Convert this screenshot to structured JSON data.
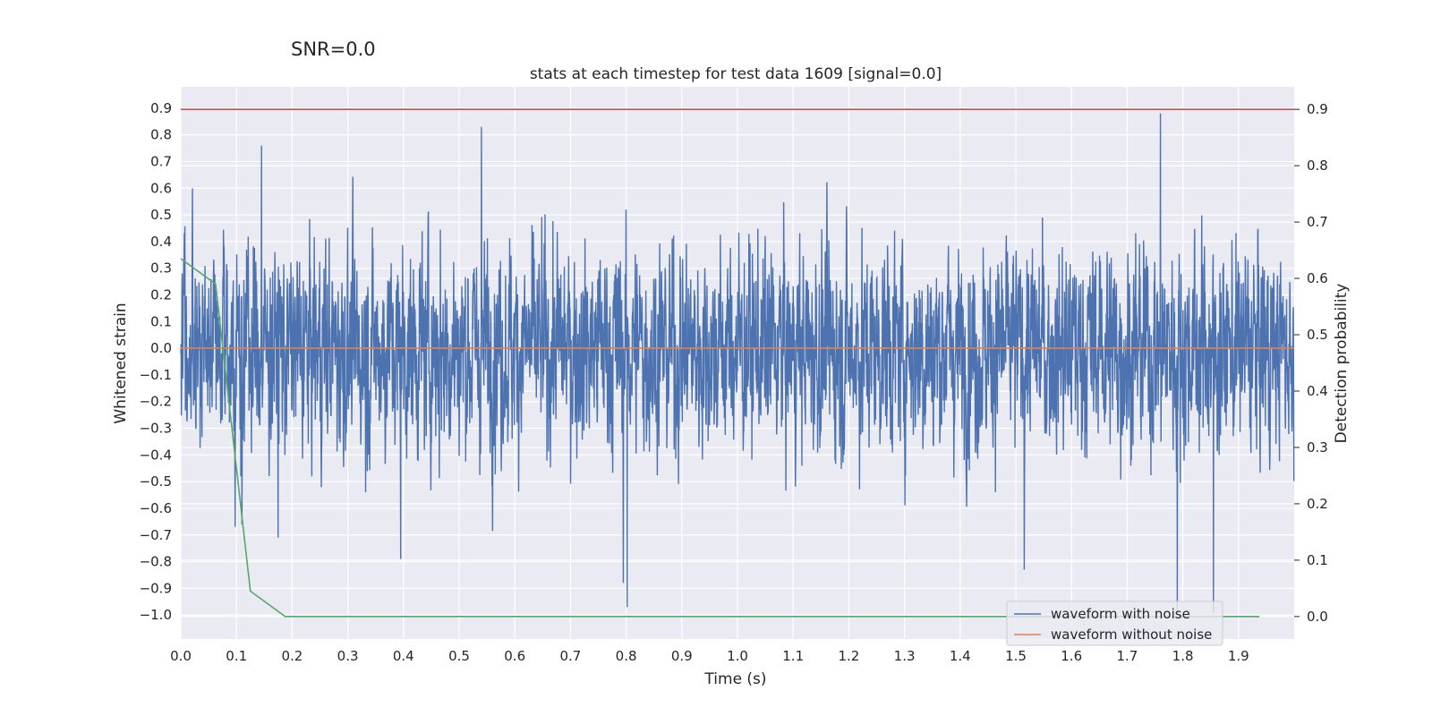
{
  "suptitle": "SNR=0.0",
  "chart_data": {
    "type": "line",
    "title": "stats at each timestep for test data 1609 [signal=0.0]",
    "xlabel": "Time (s)",
    "ylabel": "Whitened strain",
    "ylabel_right": "Detection probability",
    "xlim": [
      0.0,
      2.0
    ],
    "ylim": [
      -1.09,
      0.98
    ],
    "ylim_right": [
      -0.04,
      0.94
    ],
    "xticks": [
      "0.0",
      "0.1",
      "0.2",
      "0.3",
      "0.4",
      "0.5",
      "0.6",
      "0.7",
      "0.8",
      "0.9",
      "1.0",
      "1.1",
      "1.2",
      "1.3",
      "1.4",
      "1.5",
      "1.6",
      "1.7",
      "1.8",
      "1.9"
    ],
    "yticks": [
      "0.9",
      "0.8",
      "0.7",
      "0.6",
      "0.5",
      "0.4",
      "0.3",
      "0.2",
      "0.1",
      "0.0",
      "−0.1",
      "−0.2",
      "−0.3",
      "−0.4",
      "−0.5",
      "−0.6",
      "−0.7",
      "−0.8",
      "−0.9",
      "−1.0"
    ],
    "yticks_right": [
      "0.9",
      "0.8",
      "0.7",
      "0.6",
      "0.5",
      "0.4",
      "0.3",
      "0.2",
      "0.1",
      "0.0"
    ],
    "grid": true,
    "legend_position": "lower-right",
    "series": [
      {
        "name": "waveform with noise",
        "color": "#4c72b0",
        "axis": "left",
        "sample_rate_hz": 2048,
        "duration_s": 2.0,
        "peaks": [
          {
            "x": 0.11,
            "y": -0.66
          },
          {
            "x": 0.145,
            "y": 0.76
          },
          {
            "x": 0.175,
            "y": -0.71
          },
          {
            "x": 0.395,
            "y": -0.79
          },
          {
            "x": 0.54,
            "y": 0.83
          },
          {
            "x": 0.795,
            "y": -0.88
          },
          {
            "x": 0.802,
            "y": -0.97
          },
          {
            "x": 1.515,
            "y": -0.83
          },
          {
            "x": 1.76,
            "y": 0.88
          },
          {
            "x": 1.79,
            "y": -1.0
          },
          {
            "x": 1.855,
            "y": -0.99
          }
        ]
      },
      {
        "name": "waveform without noise",
        "color": "#dd8452",
        "axis": "left",
        "x": [
          0.0,
          2.0
        ],
        "y": [
          0.0,
          0.0
        ]
      },
      {
        "color": "#55a868",
        "axis": "right",
        "x": [
          0.0,
          0.0625,
          0.125,
          0.1875,
          0.25,
          0.3125,
          0.375,
          0.4375,
          0.5,
          0.5625,
          0.625,
          0.6875,
          0.75,
          0.8125,
          0.875,
          0.9375,
          1.0,
          1.0625,
          1.125,
          1.1875,
          1.25,
          1.3125,
          1.375,
          1.4375,
          1.5,
          1.5625,
          1.625,
          1.6875,
          1.75,
          1.8125,
          1.875,
          1.9375
        ],
        "y": [
          0.635,
          0.59,
          0.045,
          0.0,
          0.0,
          0.0,
          0.0,
          0.0,
          0.0,
          0.0,
          0.0,
          0.0,
          0.0,
          0.0,
          0.0,
          0.0,
          0.0,
          0.0,
          0.0,
          0.0,
          0.0,
          0.0,
          0.0,
          0.0,
          0.0,
          0.0,
          0.0,
          0.0,
          0.0,
          0.0,
          0.0,
          0.0
        ]
      },
      {
        "color": "#c44e52",
        "axis": "right",
        "x": [
          0.0,
          2.0
        ],
        "y": [
          0.9,
          0.9
        ]
      }
    ]
  }
}
